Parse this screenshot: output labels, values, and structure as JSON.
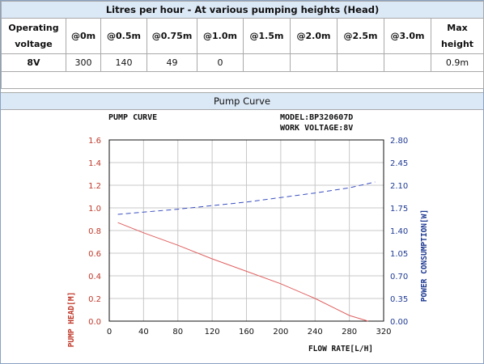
{
  "spec_table": {
    "title": "Litres per hour - At various pumping heights (Head)",
    "operating_label": [
      "Operating",
      "voltage"
    ],
    "max_label": [
      "Max",
      "height"
    ],
    "heights": [
      "@0m",
      "@0.5m",
      "@0.75m",
      "@1.0m",
      "@1.5m",
      "@2.0m",
      "@2.5m",
      "@3.0m"
    ],
    "voltage": "8V",
    "flows": [
      "300",
      "140",
      "49",
      "0",
      "",
      "",
      "",
      ""
    ],
    "max_height": "0.9m"
  },
  "section_title": "Pump Curve",
  "chart_data": {
    "type": "line",
    "title": "PUMP CURVE",
    "model_label": "MODEL:BP320607D",
    "voltage_label": "WORK VOLTAGE:8V",
    "xlabel": "FLOW RATE[L/H]",
    "ylabel": "PUMP HEAD[M]",
    "y2label": "POWER CONSUMPTION[W]",
    "xlim": [
      0,
      320
    ],
    "ylim": [
      0,
      1.6
    ],
    "y2lim": [
      0,
      2.8
    ],
    "x_ticks": [
      "0",
      "40",
      "80",
      "120",
      "160",
      "200",
      "240",
      "280",
      "320"
    ],
    "y_ticks": [
      "0.0",
      "0.2",
      "0.4",
      "0.6",
      "0.8",
      "1.0",
      "1.2",
      "1.4",
      "1.6"
    ],
    "y2_ticks": [
      "0.00",
      "0.35",
      "0.70",
      "1.05",
      "1.40",
      "1.75",
      "2.10",
      "2.45",
      "2.80"
    ],
    "grid": true,
    "series": [
      {
        "axis": "left",
        "color": "#e06060",
        "style": "solid",
        "points": [
          [
            10,
            0.87
          ],
          [
            40,
            0.78
          ],
          [
            80,
            0.67
          ],
          [
            120,
            0.55
          ],
          [
            160,
            0.44
          ],
          [
            200,
            0.33
          ],
          [
            240,
            0.2
          ],
          [
            280,
            0.05
          ],
          [
            302,
            0.0
          ]
        ]
      },
      {
        "axis": "right",
        "color": "#3a4fc0",
        "style": "dashed",
        "points": [
          [
            10,
            1.65
          ],
          [
            80,
            1.73
          ],
          [
            160,
            1.84
          ],
          [
            240,
            1.98
          ],
          [
            280,
            2.06
          ],
          [
            310,
            2.15
          ]
        ]
      }
    ]
  }
}
